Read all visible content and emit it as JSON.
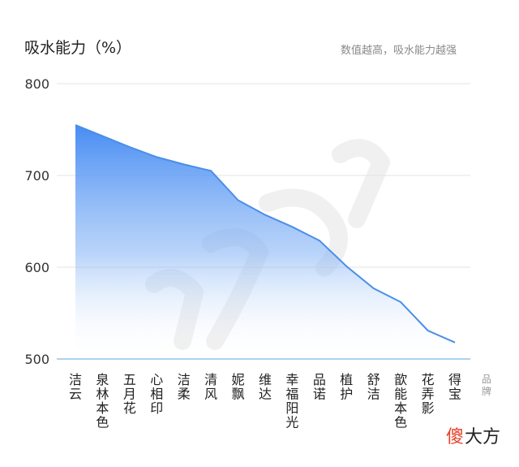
{
  "chart_data": {
    "type": "area",
    "title": "吸水能力（%）",
    "subtitle": "数值越高，吸水能力越强",
    "xlabel": "品牌",
    "ylabel": "",
    "ylim": [
      500,
      800
    ],
    "yticks": [
      500,
      600,
      700,
      800
    ],
    "grid": true,
    "categories": [
      "洁云",
      "泉林本色",
      "五月花",
      "心相印",
      "洁柔",
      "清风",
      "妮飘",
      "维达",
      "幸福阳光",
      "品诺",
      "植护",
      "舒洁",
      "歆能本色",
      "花弄影",
      "得宝"
    ],
    "series": [
      {
        "values": [
          755,
          743,
          731,
          720,
          712,
          705,
          673,
          657,
          644,
          629,
          601,
          577,
          562,
          531,
          518
        ]
      }
    ],
    "colors": {
      "line": "#4a8fe7",
      "fill_top": "#3d86f2",
      "fill_bottom": "#ffffff",
      "axis": "#8fc6e6"
    }
  },
  "watermark": {
    "brand_char1": "傻",
    "brand_rest": "大方"
  }
}
